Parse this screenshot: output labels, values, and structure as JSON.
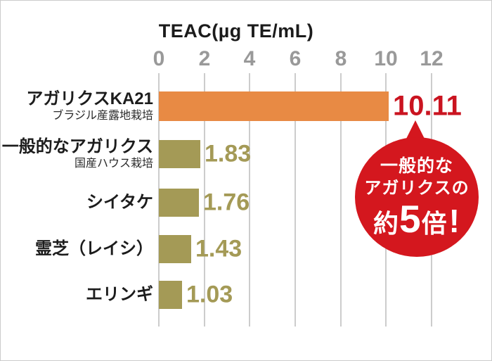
{
  "chart_data": {
    "type": "bar",
    "orientation": "horizontal",
    "title": "TEAC(µg TE/mL)",
    "xlabel": "TEAC(µg TE/mL)",
    "ylabel": "",
    "xlim": [
      0,
      12
    ],
    "x_ticks": [
      0,
      2,
      4,
      6,
      8,
      10,
      12
    ],
    "grid": true,
    "categories": [
      "アガリクスKA21",
      "一般的なアガリクス",
      "シイタケ",
      "霊芝（レイシ）",
      "エリンギ"
    ],
    "values": [
      10.11,
      1.83,
      1.76,
      1.43,
      1.03
    ],
    "rows": [
      {
        "label": "アガリクスKA21",
        "sublabel": "ブラジル産露地栽培",
        "value": 10.11,
        "value_text": "10.11",
        "bar_color": "#e88a44",
        "value_color": "#ca1420"
      },
      {
        "label": "一般的なアガリクス",
        "sublabel": "国産ハウス栽培",
        "value": 1.83,
        "value_text": "1.83",
        "bar_color": "#a49a56",
        "value_color": "#a49a56"
      },
      {
        "label": "シイタケ",
        "value": 1.76,
        "value_text": "1.76",
        "bar_color": "#a49a56",
        "value_color": "#a49a56"
      },
      {
        "label": "霊芝（レイシ）",
        "value": 1.43,
        "value_text": "1.43",
        "bar_color": "#a49a56",
        "value_color": "#a49a56"
      },
      {
        "label": "エリンギ",
        "value": 1.03,
        "value_text": "1.03",
        "bar_color": "#a49a56",
        "value_color": "#a49a56"
      }
    ],
    "colors": {
      "highlight_bar": "#e88a44",
      "default_bar": "#a49a56",
      "highlight_value": "#ca1420",
      "grid": "#cccccc",
      "tick": "#999999"
    }
  },
  "badge": {
    "line1": "一般的な",
    "line2": "アガリクスの",
    "line3_prefix": "約",
    "line3_number": "5",
    "line3_suffix": "倍",
    "line3_exclaim": "!",
    "color": "#d4171e",
    "text_color": "#ffffff"
  }
}
